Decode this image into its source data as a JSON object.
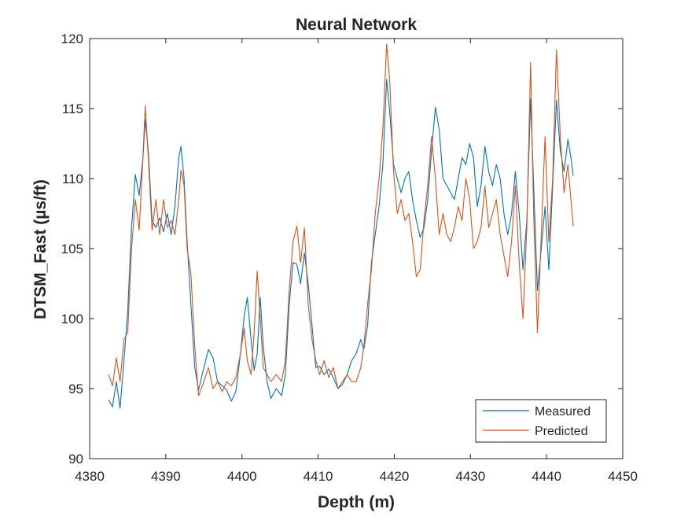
{
  "chart_data": {
    "type": "line",
    "title": "Neural Network",
    "xlabel": "Depth (m)",
    "ylabel": "DTSM_Fast (µs/ft)",
    "xlim": [
      4380,
      4450
    ],
    "ylim": [
      90,
      120
    ],
    "x_ticks": [
      4380,
      4390,
      4400,
      4410,
      4420,
      4430,
      4440,
      4450
    ],
    "y_ticks": [
      90,
      95,
      100,
      105,
      110,
      115,
      120
    ],
    "grid": false,
    "legend_position": "bottom-right",
    "series": [
      {
        "name": "Measured",
        "color": "#0072BD",
        "points": [
          [
            4382.5,
            94.2
          ],
          [
            4383.0,
            93.7
          ],
          [
            4383.5,
            95.5
          ],
          [
            4384.0,
            93.6
          ],
          [
            4384.5,
            97.0
          ],
          [
            4385.0,
            100.5
          ],
          [
            4385.5,
            106.5
          ],
          [
            4386.0,
            110.3
          ],
          [
            4386.5,
            108.8
          ],
          [
            4387.0,
            111.5
          ],
          [
            4387.3,
            114.2
          ],
          [
            4387.7,
            112.0
          ],
          [
            4388.2,
            107.0
          ],
          [
            4388.7,
            106.5
          ],
          [
            4389.2,
            107.2
          ],
          [
            4389.7,
            106.2
          ],
          [
            4390.2,
            107.5
          ],
          [
            4390.7,
            106.0
          ],
          [
            4391.2,
            108.0
          ],
          [
            4391.7,
            111.5
          ],
          [
            4392.0,
            112.3
          ],
          [
            4392.4,
            110.0
          ],
          [
            4392.8,
            105.5
          ],
          [
            4393.3,
            101.0
          ],
          [
            4393.8,
            96.5
          ],
          [
            4394.3,
            94.9
          ],
          [
            4395.0,
            96.5
          ],
          [
            4395.6,
            97.8
          ],
          [
            4396.2,
            97.2
          ],
          [
            4396.8,
            95.5
          ],
          [
            4397.4,
            95.2
          ],
          [
            4398.0,
            94.9
          ],
          [
            4398.6,
            94.1
          ],
          [
            4399.2,
            94.8
          ],
          [
            4399.8,
            97.5
          ],
          [
            4400.3,
            100.2
          ],
          [
            4400.7,
            101.5
          ],
          [
            4401.2,
            98.5
          ],
          [
            4401.6,
            96.3
          ],
          [
            4402.0,
            97.5
          ],
          [
            4402.4,
            101.5
          ],
          [
            4402.8,
            98.0
          ],
          [
            4403.3,
            95.5
          ],
          [
            4403.8,
            94.3
          ],
          [
            4404.5,
            95.0
          ],
          [
            4405.2,
            94.5
          ],
          [
            4405.7,
            96.0
          ],
          [
            4406.2,
            101.0
          ],
          [
            4406.7,
            104.0
          ],
          [
            4407.2,
            103.9
          ],
          [
            4407.7,
            102.5
          ],
          [
            4408.2,
            104.7
          ],
          [
            4408.7,
            102.5
          ],
          [
            4409.2,
            99.5
          ],
          [
            4409.7,
            96.5
          ],
          [
            4410.2,
            96.6
          ],
          [
            4410.8,
            96.0
          ],
          [
            4411.4,
            96.4
          ],
          [
            4412.0,
            95.8
          ],
          [
            4412.6,
            95.0
          ],
          [
            4413.2,
            95.3
          ],
          [
            4413.8,
            96.0
          ],
          [
            4414.4,
            97.0
          ],
          [
            4415.0,
            97.5
          ],
          [
            4415.6,
            98.5
          ],
          [
            4416.0,
            97.8
          ],
          [
            4416.5,
            99.5
          ],
          [
            4417.0,
            104.0
          ],
          [
            4417.5,
            106.0
          ],
          [
            4418.0,
            108.0
          ],
          [
            4418.5,
            111.0
          ],
          [
            4419.0,
            117.1
          ],
          [
            4419.4,
            114.8
          ],
          [
            4419.9,
            111.0
          ],
          [
            4420.4,
            110.0
          ],
          [
            4420.9,
            109.0
          ],
          [
            4421.4,
            110.0
          ],
          [
            4421.9,
            110.5
          ],
          [
            4422.4,
            108.5
          ],
          [
            4422.9,
            107.0
          ],
          [
            4423.4,
            105.8
          ],
          [
            4423.9,
            106.5
          ],
          [
            4424.4,
            108.5
          ],
          [
            4424.9,
            112.0
          ],
          [
            4425.4,
            115.1
          ],
          [
            4425.9,
            113.5
          ],
          [
            4426.4,
            110.0
          ],
          [
            4426.9,
            109.5
          ],
          [
            4427.4,
            109.0
          ],
          [
            4427.9,
            108.5
          ],
          [
            4428.4,
            110.0
          ],
          [
            4428.9,
            111.5
          ],
          [
            4429.4,
            111.0
          ],
          [
            4429.9,
            112.5
          ],
          [
            4430.4,
            111.5
          ],
          [
            4430.9,
            108.0
          ],
          [
            4431.4,
            109.5
          ],
          [
            4431.9,
            112.3
          ],
          [
            4432.4,
            110.5
          ],
          [
            4432.9,
            109.5
          ],
          [
            4433.4,
            111.0
          ],
          [
            4433.9,
            110.0
          ],
          [
            4434.4,
            107.5
          ],
          [
            4434.9,
            106.0
          ],
          [
            4435.4,
            107.5
          ],
          [
            4435.9,
            110.5
          ],
          [
            4436.4,
            107.5
          ],
          [
            4436.9,
            103.5
          ],
          [
            4437.4,
            107.0
          ],
          [
            4437.9,
            115.7
          ],
          [
            4438.3,
            109.5
          ],
          [
            4438.8,
            102.0
          ],
          [
            4439.3,
            105.0
          ],
          [
            4439.8,
            108.0
          ],
          [
            4440.3,
            103.5
          ],
          [
            4440.8,
            109.5
          ],
          [
            4441.3,
            115.6
          ],
          [
            4441.8,
            112.0
          ],
          [
            4442.3,
            110.5
          ],
          [
            4442.8,
            112.8
          ],
          [
            4443.2,
            111.5
          ],
          [
            4443.5,
            110.2
          ]
        ]
      },
      {
        "name": "Predicted",
        "color": "#D95319",
        "points": [
          [
            4382.5,
            96.0
          ],
          [
            4383.0,
            95.2
          ],
          [
            4383.5,
            97.2
          ],
          [
            4384.0,
            95.5
          ],
          [
            4384.5,
            98.5
          ],
          [
            4385.0,
            99.0
          ],
          [
            4385.5,
            105.0
          ],
          [
            4386.0,
            108.5
          ],
          [
            4386.5,
            106.3
          ],
          [
            4387.0,
            111.5
          ],
          [
            4387.3,
            115.2
          ],
          [
            4387.7,
            111.5
          ],
          [
            4388.2,
            106.3
          ],
          [
            4388.7,
            108.5
          ],
          [
            4389.2,
            106.0
          ],
          [
            4389.7,
            108.5
          ],
          [
            4390.2,
            106.5
          ],
          [
            4390.7,
            107.0
          ],
          [
            4391.2,
            106.0
          ],
          [
            4391.7,
            108.5
          ],
          [
            4392.0,
            110.6
          ],
          [
            4392.4,
            109.5
          ],
          [
            4392.8,
            105.0
          ],
          [
            4393.3,
            103.2
          ],
          [
            4393.8,
            98.0
          ],
          [
            4394.3,
            94.5
          ],
          [
            4395.0,
            95.5
          ],
          [
            4395.6,
            96.5
          ],
          [
            4396.2,
            95.0
          ],
          [
            4396.8,
            95.5
          ],
          [
            4397.4,
            94.8
          ],
          [
            4398.0,
            95.5
          ],
          [
            4398.6,
            95.2
          ],
          [
            4399.2,
            95.8
          ],
          [
            4399.8,
            97.5
          ],
          [
            4400.3,
            99.3
          ],
          [
            4400.7,
            97.0
          ],
          [
            4401.2,
            96.0
          ],
          [
            4401.6,
            99.0
          ],
          [
            4402.0,
            103.4
          ],
          [
            4402.4,
            100.0
          ],
          [
            4402.8,
            96.5
          ],
          [
            4403.3,
            96.0
          ],
          [
            4403.8,
            95.5
          ],
          [
            4404.5,
            96.0
          ],
          [
            4405.2,
            95.5
          ],
          [
            4405.7,
            97.0
          ],
          [
            4406.2,
            102.0
          ],
          [
            4406.7,
            105.5
          ],
          [
            4407.2,
            106.6
          ],
          [
            4407.7,
            104.0
          ],
          [
            4408.2,
            106.5
          ],
          [
            4408.7,
            101.0
          ],
          [
            4409.2,
            98.5
          ],
          [
            4409.7,
            97.0
          ],
          [
            4410.2,
            96.0
          ],
          [
            4410.8,
            97.0
          ],
          [
            4411.4,
            95.8
          ],
          [
            4412.0,
            96.5
          ],
          [
            4412.6,
            95.0
          ],
          [
            4413.2,
            95.5
          ],
          [
            4413.8,
            96.0
          ],
          [
            4414.4,
            95.5
          ],
          [
            4415.0,
            95.5
          ],
          [
            4415.6,
            96.5
          ],
          [
            4416.0,
            98.0
          ],
          [
            4416.5,
            101.0
          ],
          [
            4417.0,
            103.5
          ],
          [
            4417.5,
            107.5
          ],
          [
            4418.0,
            110.0
          ],
          [
            4418.5,
            113.5
          ],
          [
            4419.0,
            119.6
          ],
          [
            4419.4,
            117.0
          ],
          [
            4419.9,
            110.5
          ],
          [
            4420.4,
            107.5
          ],
          [
            4420.9,
            108.5
          ],
          [
            4421.4,
            107.0
          ],
          [
            4421.9,
            107.5
          ],
          [
            4422.4,
            105.5
          ],
          [
            4422.9,
            103.0
          ],
          [
            4423.4,
            103.5
          ],
          [
            4423.9,
            107.0
          ],
          [
            4424.4,
            109.5
          ],
          [
            4424.9,
            113.0
          ],
          [
            4425.4,
            110.0
          ],
          [
            4425.9,
            106.0
          ],
          [
            4426.4,
            107.5
          ],
          [
            4426.9,
            106.0
          ],
          [
            4427.4,
            105.5
          ],
          [
            4427.9,
            106.5
          ],
          [
            4428.4,
            108.0
          ],
          [
            4428.9,
            107.0
          ],
          [
            4429.4,
            110.0
          ],
          [
            4429.9,
            108.5
          ],
          [
            4430.4,
            105.0
          ],
          [
            4430.9,
            105.5
          ],
          [
            4431.4,
            106.5
          ],
          [
            4431.9,
            109.5
          ],
          [
            4432.4,
            106.5
          ],
          [
            4432.9,
            107.5
          ],
          [
            4433.4,
            108.5
          ],
          [
            4433.9,
            106.0
          ],
          [
            4434.4,
            104.5
          ],
          [
            4434.9,
            103.0
          ],
          [
            4435.4,
            105.5
          ],
          [
            4435.9,
            109.5
          ],
          [
            4436.4,
            104.0
          ],
          [
            4436.9,
            100.0
          ],
          [
            4437.4,
            106.5
          ],
          [
            4437.9,
            118.3
          ],
          [
            4438.3,
            107.5
          ],
          [
            4438.8,
            99.0
          ],
          [
            4439.3,
            106.0
          ],
          [
            4439.8,
            113.0
          ],
          [
            4440.3,
            105.5
          ],
          [
            4440.8,
            110.0
          ],
          [
            4441.3,
            119.2
          ],
          [
            4441.8,
            113.0
          ],
          [
            4442.3,
            109.0
          ],
          [
            4442.8,
            111.0
          ],
          [
            4443.2,
            108.5
          ],
          [
            4443.5,
            106.6
          ]
        ]
      }
    ]
  }
}
